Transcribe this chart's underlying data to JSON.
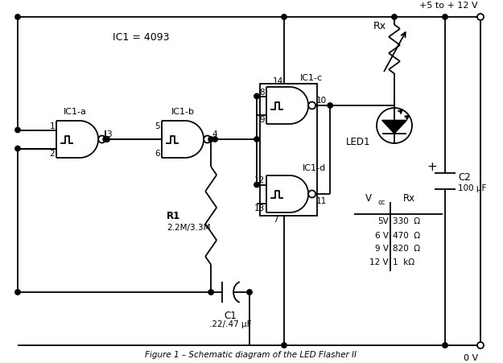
{
  "title": "Figure 1 – Schematic diagram of the LED Flasher II",
  "bg_color": "#ffffff",
  "labels": {
    "IC1_eq": "IC1 = 4093",
    "IC1a": "IC1-a",
    "IC1b": "IC1-b",
    "IC1c": "IC1-c",
    "IC1d": "IC1-d",
    "R1": "R1",
    "R1_val": "2.2M/3.3M",
    "C1": "C1",
    "C1_val": ".22/.47 μF",
    "C2": "C2",
    "C2_val": "100 μF",
    "Rx_label": "Rx",
    "LED1": "LED1",
    "vplus": "+5 to + 12 V",
    "vzero": "0 V",
    "p1": "1",
    "p2": "2",
    "p3": "3",
    "p4": "4",
    "p5": "5",
    "p6": "6",
    "p7": "7",
    "p8": "8",
    "p9": "9",
    "p10": "10",
    "p11": "11",
    "p12": "12",
    "p13": "13",
    "p14": "14",
    "table_Vcc": "V",
    "table_cc": "cc",
    "table_Rx": "Rx",
    "row1_v": "5V",
    "row1_r": "330  Ω",
    "row2_v": "6 V",
    "row2_r": "470  Ω",
    "row3_v": "9 V",
    "row3_r": "820  Ω",
    "row4_v": "12 V",
    "row4_r": "1  kΩ"
  }
}
